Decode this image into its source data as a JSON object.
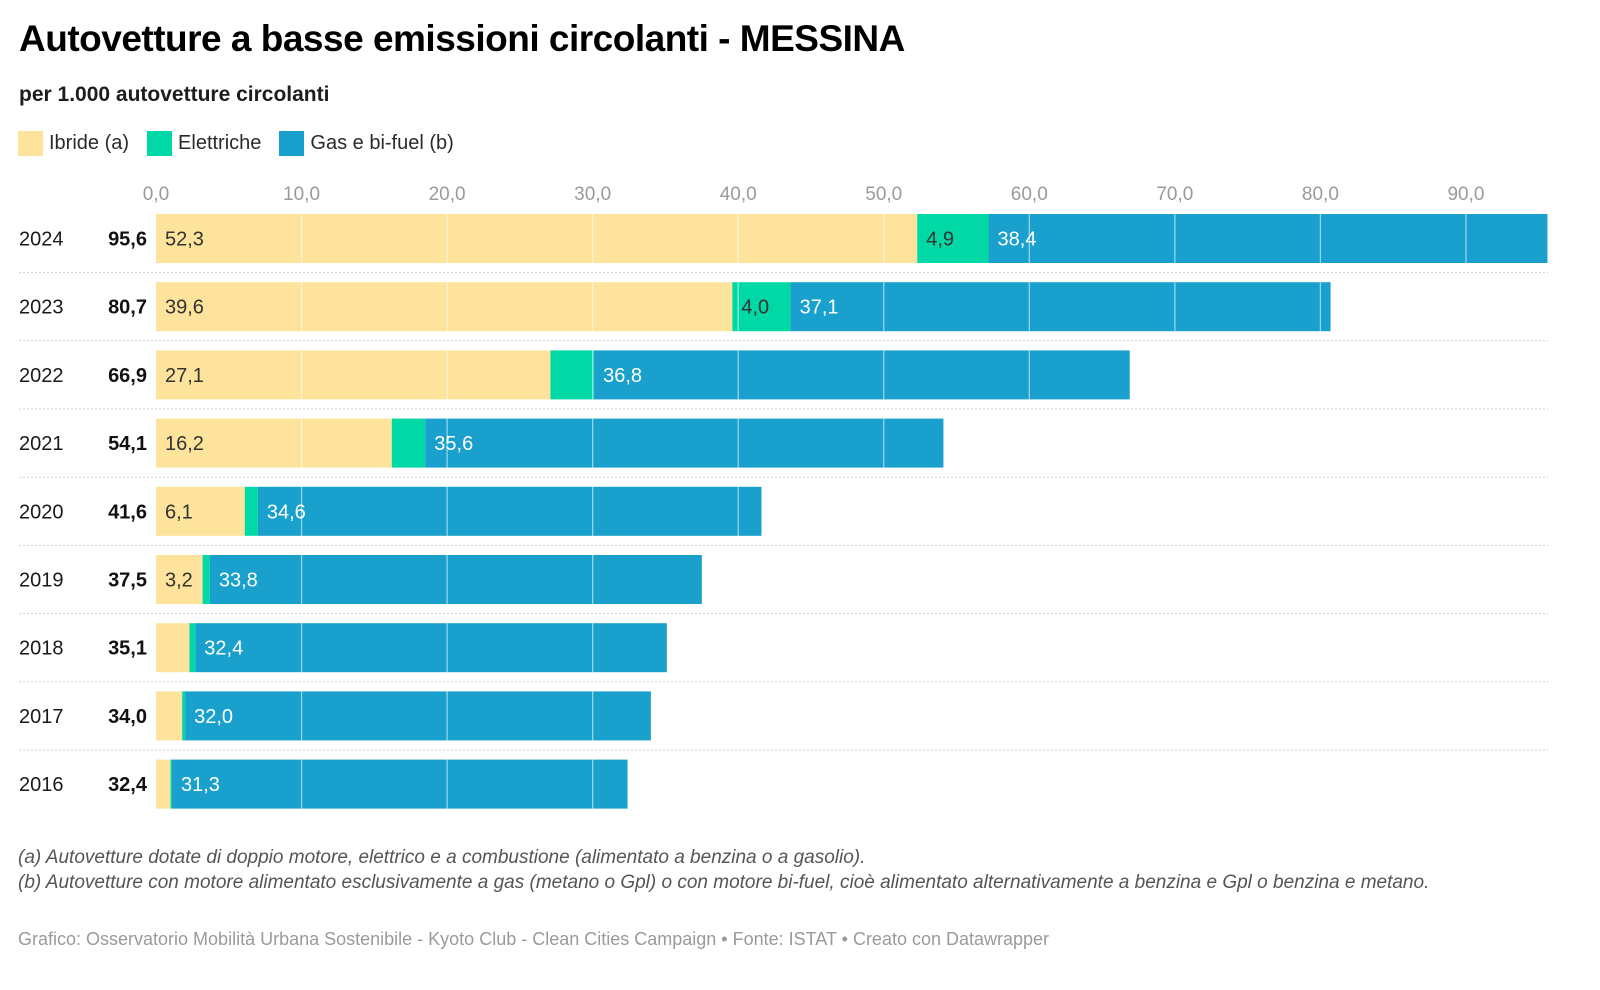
{
  "header": {
    "title": "Autovetture a basse emissioni circolanti - MESSINA",
    "subtitle": "per 1.000 autovetture circolanti"
  },
  "legend": [
    {
      "label": "Ibride (a)",
      "color": "#fde39c"
    },
    {
      "label": "Elettriche",
      "color": "#00d8a6"
    },
    {
      "label": "Gas e bi-fuel (b)",
      "color": "#19a0cc"
    }
  ],
  "chart_data": {
    "type": "bar",
    "orientation": "horizontal",
    "stacked": true,
    "title": "Autovetture a basse emissioni circolanti - MESSINA",
    "subtitle": "per 1.000 autovetture circolanti",
    "xlabel": "",
    "ylabel": "",
    "xlim": [
      0,
      95.6
    ],
    "x_ticks": [
      0,
      10,
      20,
      30,
      40,
      50,
      60,
      70,
      80,
      90
    ],
    "x_tick_labels": [
      "0,0",
      "10,0",
      "20,0",
      "30,0",
      "40,0",
      "50,0",
      "60,0",
      "70,0",
      "80,0",
      "90,0"
    ],
    "grid": true,
    "legend_position": "top-left",
    "categories": [
      "2024",
      "2023",
      "2022",
      "2021",
      "2020",
      "2019",
      "2018",
      "2017",
      "2016"
    ],
    "totals": [
      95.6,
      80.7,
      66.9,
      54.1,
      41.6,
      37.5,
      35.1,
      34.0,
      32.4
    ],
    "total_labels": [
      "95,6",
      "80,7",
      "66,9",
      "54,1",
      "41,6",
      "37,5",
      "35,1",
      "34,0",
      "32,4"
    ],
    "series": [
      {
        "name": "Ibride (a)",
        "color": "#fde39c",
        "label_color": "#333333",
        "values": [
          52.3,
          39.6,
          27.1,
          16.2,
          6.1,
          3.2,
          2.3,
          1.8,
          1.0
        ],
        "labels": [
          "52,3",
          "39,6",
          "27,1",
          "16,2",
          "6,1",
          "3,2",
          "",
          "",
          ""
        ]
      },
      {
        "name": "Elettriche",
        "color": "#00d8a6",
        "label_color": "#333333",
        "values": [
          4.9,
          4.0,
          3.0,
          2.3,
          0.9,
          0.5,
          0.4,
          0.2,
          0.1
        ],
        "labels": [
          "4,9",
          "4,0",
          "",
          "",
          "",
          "",
          "",
          "",
          ""
        ]
      },
      {
        "name": "Gas e bi-fuel (b)",
        "color": "#19a0cc",
        "label_color": "#ffffff",
        "values": [
          38.4,
          37.1,
          36.8,
          35.6,
          34.6,
          33.8,
          32.4,
          32.0,
          31.3
        ],
        "labels": [
          "38,4",
          "37,1",
          "36,8",
          "35,6",
          "34,6",
          "33,8",
          "32,4",
          "32,0",
          "31,3"
        ]
      }
    ]
  },
  "notes": {
    "a": "(a) Autovetture dotate di doppio motore, elettrico e a combustione (alimentato a benzina o a gasolio).",
    "b": "(b) Autovetture con motore alimentato esclusivamente a gas (metano o Gpl) o con motore bi-fuel, cioè alimentato alternativamente a benzina e Gpl o benzina e metano."
  },
  "credit": "Grafico: Osservatorio Mobilità Urbana Sostenibile - Kyoto Club - Clean Cities Campaign • Fonte: ISTAT • Creato con Datawrapper"
}
